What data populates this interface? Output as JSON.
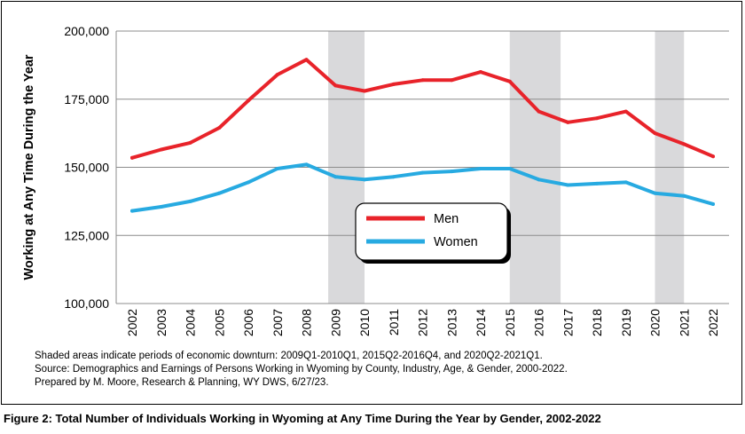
{
  "chart_data": {
    "type": "line",
    "ylabel": "Working at Any Time During the Year",
    "xlabel": "",
    "ylim": [
      100000,
      200000
    ],
    "yticks": [
      100000,
      125000,
      150000,
      175000,
      200000
    ],
    "ytick_labels": [
      "100,000",
      "125,000",
      "150,000",
      "175,000",
      "200,000"
    ],
    "categories": [
      "2002",
      "2003",
      "2004",
      "2005",
      "2006",
      "2007",
      "2008",
      "2009",
      "2010",
      "2011",
      "2012",
      "2013",
      "2014",
      "2015",
      "2016",
      "2017",
      "2018",
      "2019",
      "2020",
      "2021",
      "2022"
    ],
    "series": [
      {
        "name": "Men",
        "color": "#e8232a",
        "values": [
          153500,
          156500,
          159000,
          164500,
          174500,
          184000,
          189500,
          180000,
          178000,
          180500,
          182000,
          182000,
          185000,
          181500,
          170500,
          166500,
          168000,
          170500,
          162500,
          158500,
          154000
        ]
      },
      {
        "name": "Women",
        "color": "#27aae1",
        "values": [
          134000,
          135500,
          137500,
          140500,
          144500,
          149500,
          151000,
          146500,
          145500,
          146500,
          148000,
          148500,
          149500,
          149500,
          145500,
          143500,
          144000,
          144500,
          140500,
          139500,
          136500
        ]
      }
    ],
    "shaded_periods": [
      {
        "from": "2009Q1",
        "to": "2010Q1",
        "x0": 2008.75,
        "x1": 2010.0
      },
      {
        "from": "2015Q2",
        "to": "2016Q4",
        "x0": 2015.0,
        "x1": 2016.75
      },
      {
        "from": "2020Q2",
        "to": "2021Q1",
        "x0": 2020.0,
        "x1": 2021.0
      }
    ],
    "shade_color": "#d9d9db",
    "grid": true,
    "legend_position": "center"
  },
  "notes": {
    "line1": "Shaded areas indicate periods of economic downturn: 2009Q1-2010Q1, 2015Q2-2016Q4, and 2020Q2-2021Q1.",
    "line2": "Source: Demographics and Earnings of Persons Working in Wyoming by County, Industry, Age, & Gender, 2000-2022.",
    "line3": "Prepared by M. Moore, Research & Planning, WY DWS, 6/27/23."
  },
  "caption": "Figure 2: Total Number of Individuals Working in Wyoming at Any Time During the Year by Gender, 2002-2022"
}
